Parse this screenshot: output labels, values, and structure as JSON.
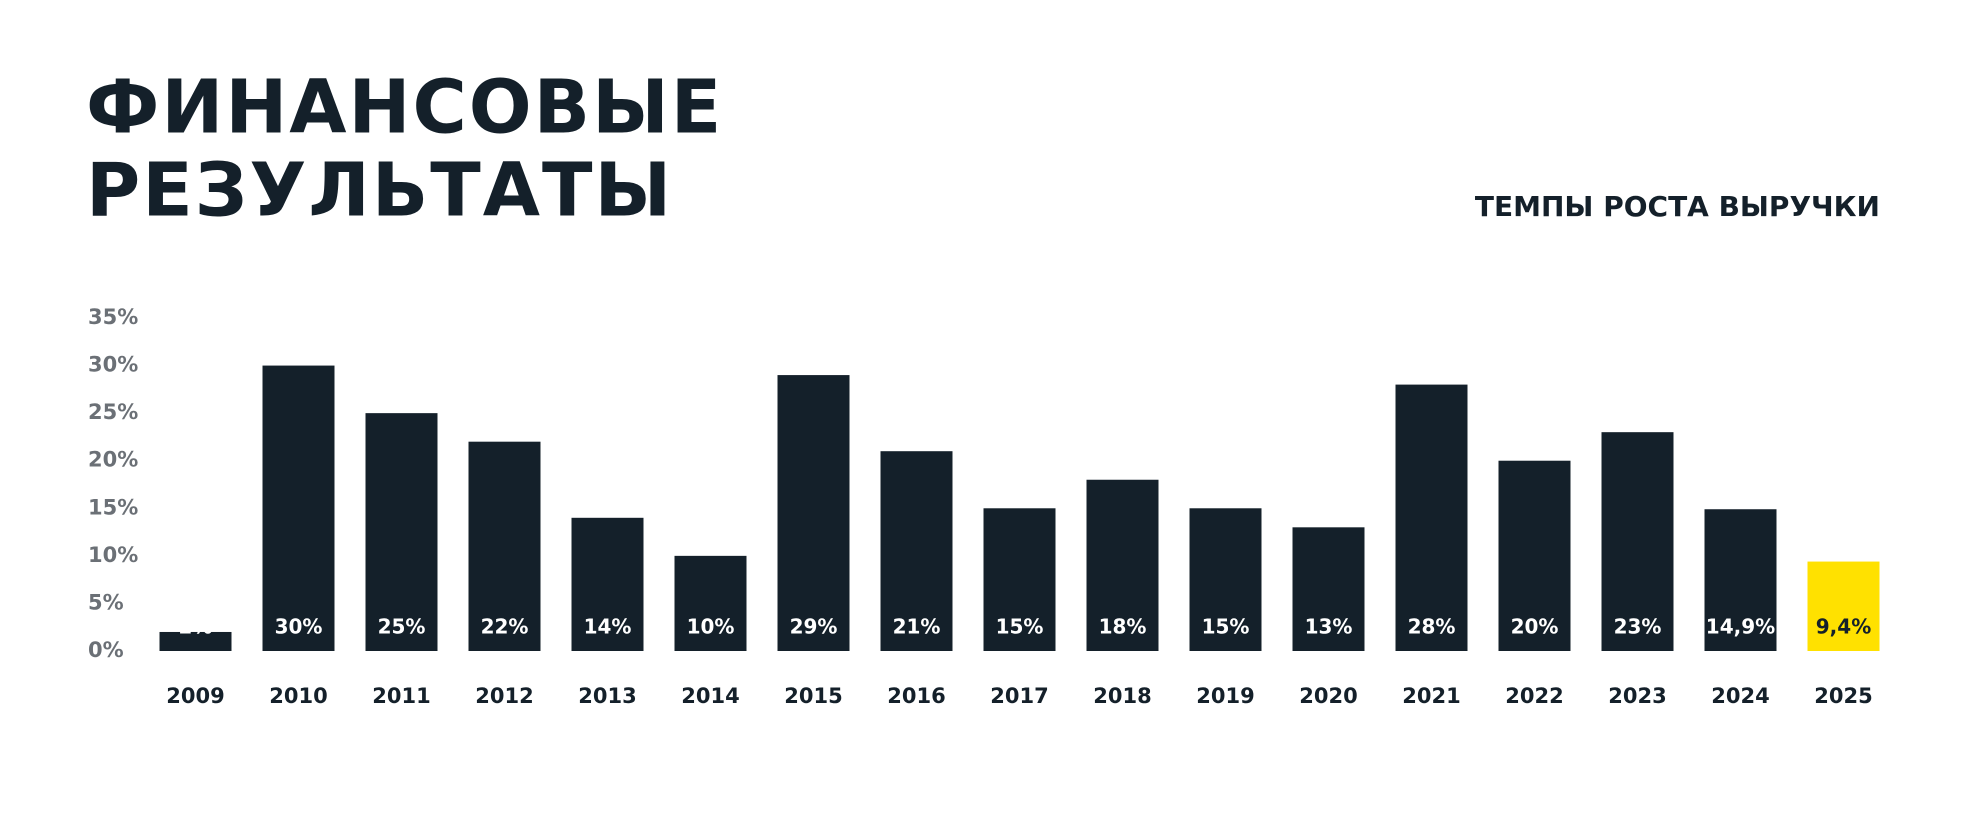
{
  "chart_data": {
    "type": "bar",
    "title": [
      "ФИНАНСОВЫЕ",
      "РЕЗУЛЬТАТЫ"
    ],
    "subtitle": "ТЕМПЫ РОСТА ВЫРУЧКИ",
    "categories": [
      "2009",
      "2010",
      "2011",
      "2012",
      "2013",
      "2014",
      "2015",
      "2016",
      "2017",
      "2018",
      "2019",
      "2020",
      "2021",
      "2022",
      "2023",
      "2024",
      "2025"
    ],
    "values": [
      2,
      30,
      25,
      22,
      14,
      10,
      29,
      21,
      15,
      18,
      15,
      13,
      28,
      20,
      23,
      14.9,
      9.4
    ],
    "value_labels": [
      "2%",
      "30%",
      "25%",
      "22%",
      "14%",
      "10%",
      "29%",
      "21%",
      "15%",
      "18%",
      "15%",
      "13%",
      "28%",
      "20%",
      "23%",
      "14,9%",
      "9,4%"
    ],
    "colors": [
      "#14202a",
      "#14202a",
      "#14202a",
      "#14202a",
      "#14202a",
      "#14202a",
      "#14202a",
      "#14202a",
      "#14202a",
      "#14202a",
      "#14202a",
      "#14202a",
      "#14202a",
      "#14202a",
      "#14202a",
      "#14202a",
      "#ffe100"
    ],
    "ylim": [
      0,
      35
    ],
    "yticks": [
      {
        "value": 0,
        "label": "0%"
      },
      {
        "value": 5,
        "label": "5%"
      },
      {
        "value": 10,
        "label": "10%"
      },
      {
        "value": 15,
        "label": "15%"
      },
      {
        "value": 20,
        "label": "20%"
      },
      {
        "value": 25,
        "label": "25%"
      },
      {
        "value": 30,
        "label": "30%"
      },
      {
        "value": 35,
        "label": "35%"
      }
    ],
    "grid": false
  }
}
